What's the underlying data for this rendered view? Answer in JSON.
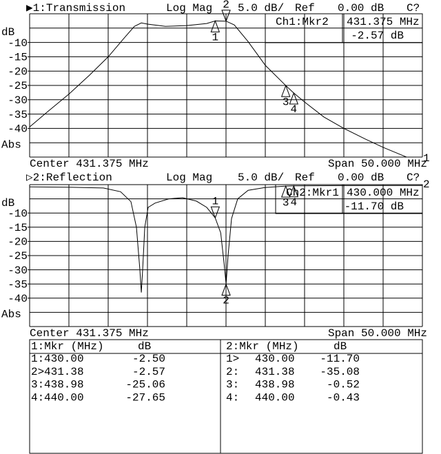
{
  "chart_data": [
    {
      "type": "line",
      "title": "▶1:Transmission",
      "format": "Log Mag",
      "scale": "5.0 dB/",
      "ref_label": "Ref",
      "ref_value": "0.00 dB",
      "status": "C?",
      "y_label": "dB",
      "y_unit_label": "Abs",
      "center": "Center 431.375 MHz",
      "span": "Span 50.000 MHz",
      "ref_position_label": "1",
      "xlim": [
        406.375,
        456.375
      ],
      "ylim": [
        -50,
        0
      ],
      "yticks": [
        -10,
        -15,
        -20,
        -25,
        -30,
        -35,
        -40
      ],
      "color": "#000000",
      "x": [
        406.375,
        408.74,
        411.38,
        414.01,
        416.38,
        418.39,
        419.71,
        420.59,
        421.38,
        423.66,
        426.38,
        428.92,
        430.0,
        431.38,
        432.43,
        434.19,
        436.38,
        438.98,
        440.0,
        441.38,
        443.83,
        446.38,
        449.1,
        451.38,
        453.92,
        454.36
      ],
      "values": [
        -39.5,
        -34,
        -28,
        -21.4,
        -15,
        -8.5,
        -4.4,
        -3.2,
        -3.6,
        -4.4,
        -4.1,
        -3.4,
        -2.5,
        -2.57,
        -3.9,
        -9.7,
        -18,
        -25.06,
        -27.65,
        -30.8,
        -36,
        -40,
        -43.7,
        -46.6,
        -49.5,
        -50
      ],
      "markers": [
        {
          "label": "1",
          "x": 430.0,
          "value": -2.5,
          "active": false
        },
        {
          "label": "2",
          "x": 431.38,
          "value": -2.57,
          "active": true
        },
        {
          "label": "3",
          "x": 438.98,
          "value": -25.06,
          "active": false
        },
        {
          "label": "4",
          "x": 440.0,
          "value": -27.65,
          "active": false
        }
      ],
      "readout": {
        "marker": "Ch1:Mkr2",
        "x": "431.375 MHz",
        "value": "-2.57 dB"
      }
    },
    {
      "type": "line",
      "title": "▷2:Reflection",
      "format": "Log Mag",
      "scale": "5.0 dB/",
      "ref_label": "Ref",
      "ref_value": "0.00 dB",
      "status": "C?",
      "y_label": "dB",
      "y_unit_label": "Abs",
      "center": "Center 431.375 MHz",
      "span": "Span 50.000 MHz",
      "ref_position_label": "2",
      "xlim": [
        406.375,
        456.375
      ],
      "ylim": [
        -50,
        0
      ],
      "yticks": [
        -10,
        -15,
        -20,
        -25,
        -30,
        -35,
        -40
      ],
      "color": "#000000",
      "x": [
        406.375,
        411.38,
        415.76,
        417.95,
        419.27,
        419.97,
        420.41,
        420.59,
        420.76,
        421.03,
        421.46,
        422.34,
        424.09,
        425.85,
        427.6,
        428.92,
        430.0,
        430.7,
        431.14,
        431.38,
        431.64,
        432.08,
        432.87,
        434.19,
        436.38,
        438.98,
        440.0,
        446.46,
        456.375
      ],
      "values": [
        -0.8,
        -0.9,
        -1.2,
        -2.5,
        -6,
        -15,
        -30,
        -38,
        -30,
        -15,
        -8,
        -6.5,
        -5,
        -4.6,
        -5.8,
        -8,
        -11.7,
        -17,
        -28,
        -35.08,
        -25,
        -12,
        -5,
        -2,
        -1,
        -0.52,
        -0.43,
        -0.35,
        -0.3
      ],
      "markers": [
        {
          "label": "1",
          "x": 430.0,
          "value": -11.7,
          "active": true
        },
        {
          "label": "2",
          "x": 431.38,
          "value": -35.08,
          "active": false
        },
        {
          "label": "3",
          "x": 438.98,
          "value": -0.52,
          "active": false
        },
        {
          "label": "4",
          "x": 440.0,
          "value": -0.43,
          "active": false
        }
      ],
      "readout": {
        "marker": "Ch2:Mkr1",
        "x": "430.000 MHz",
        "value": "-11.70 dB"
      }
    }
  ],
  "marker_table": [
    {
      "header": [
        "1:Mkr (MHz)",
        "dB"
      ],
      "rows": [
        [
          "1:",
          "430.00",
          "-2.50"
        ],
        [
          "2>",
          "431.38",
          "-2.57"
        ],
        [
          "3:",
          "438.98",
          "-25.06"
        ],
        [
          "4:",
          "440.00",
          "-27.65"
        ]
      ]
    },
    {
      "header": [
        "2:Mkr (MHz)",
        "dB"
      ],
      "rows": [
        [
          "1>",
          "430.00",
          "-11.70"
        ],
        [
          "2:",
          "431.38",
          "-35.08"
        ],
        [
          "3:",
          "438.98",
          "-0.52"
        ],
        [
          "4:",
          "440.00",
          "-0.43"
        ]
      ]
    }
  ]
}
